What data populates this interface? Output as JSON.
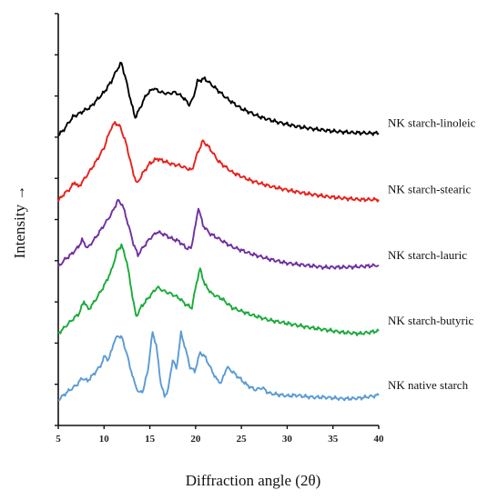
{
  "chart_data": {
    "type": "line",
    "title": "",
    "xlabel": "Diffraction angle (2θ)",
    "ylabel": "Intensity →",
    "xlim": [
      5,
      40
    ],
    "xticks": [
      5,
      10,
      15,
      20,
      25,
      30,
      35,
      40
    ],
    "grid": false,
    "legend": "series labels printed at right end of each trace",
    "series": [
      {
        "name": "NK starch-linoleic",
        "color": "#000000",
        "offset": 4,
        "points": [
          [
            5,
            0.0
          ],
          [
            5.5,
            0.05
          ],
          [
            6,
            0.15
          ],
          [
            6.6,
            0.26
          ],
          [
            7.2,
            0.3
          ],
          [
            7.8,
            0.35
          ],
          [
            8.5,
            0.4
          ],
          [
            9.3,
            0.52
          ],
          [
            10,
            0.62
          ],
          [
            10.8,
            0.78
          ],
          [
            11.4,
            0.95
          ],
          [
            11.9,
            1.05
          ],
          [
            12.4,
            0.8
          ],
          [
            13,
            0.45
          ],
          [
            13.4,
            0.25
          ],
          [
            13.9,
            0.38
          ],
          [
            14.6,
            0.58
          ],
          [
            15.4,
            0.68
          ],
          [
            16.2,
            0.62
          ],
          [
            17,
            0.6
          ],
          [
            17.8,
            0.62
          ],
          [
            18.6,
            0.55
          ],
          [
            19.3,
            0.44
          ],
          [
            19.7,
            0.52
          ],
          [
            20.2,
            0.78
          ],
          [
            21,
            0.82
          ],
          [
            22,
            0.7
          ],
          [
            23.5,
            0.52
          ],
          [
            25,
            0.38
          ],
          [
            27,
            0.26
          ],
          [
            29,
            0.18
          ],
          [
            31,
            0.12
          ],
          [
            33,
            0.08
          ],
          [
            35,
            0.05
          ],
          [
            37,
            0.03
          ],
          [
            39,
            0.02
          ],
          [
            40,
            0.02
          ]
        ]
      },
      {
        "name": "NK starch-stearic",
        "color": "#e8201c",
        "offset": 3,
        "points": [
          [
            5,
            0.0
          ],
          [
            5.6,
            0.1
          ],
          [
            6.3,
            0.18
          ],
          [
            6.8,
            0.28
          ],
          [
            7.2,
            0.2
          ],
          [
            8,
            0.35
          ],
          [
            9,
            0.55
          ],
          [
            10,
            0.78
          ],
          [
            10.7,
            1.05
          ],
          [
            11.2,
            1.15
          ],
          [
            11.8,
            1.08
          ],
          [
            12.5,
            0.8
          ],
          [
            13.1,
            0.45
          ],
          [
            13.6,
            0.25
          ],
          [
            14.2,
            0.4
          ],
          [
            15,
            0.55
          ],
          [
            15.8,
            0.62
          ],
          [
            16.6,
            0.58
          ],
          [
            17.4,
            0.54
          ],
          [
            18.2,
            0.52
          ],
          [
            19,
            0.48
          ],
          [
            19.6,
            0.45
          ],
          [
            20.2,
            0.7
          ],
          [
            20.8,
            0.88
          ],
          [
            21.5,
            0.78
          ],
          [
            22.5,
            0.58
          ],
          [
            24,
            0.42
          ],
          [
            26,
            0.3
          ],
          [
            28,
            0.22
          ],
          [
            30,
            0.16
          ],
          [
            32,
            0.11
          ],
          [
            34,
            0.07
          ],
          [
            36,
            0.04
          ],
          [
            38,
            0.02
          ],
          [
            40,
            0.02
          ]
        ]
      },
      {
        "name": "NK starch-lauric",
        "color": "#7030a0",
        "offset": 2,
        "points": [
          [
            5,
            0.0
          ],
          [
            5.6,
            0.1
          ],
          [
            6.5,
            0.2
          ],
          [
            7.2,
            0.3
          ],
          [
            7.6,
            0.4
          ],
          [
            8.2,
            0.28
          ],
          [
            9,
            0.42
          ],
          [
            10,
            0.62
          ],
          [
            10.8,
            0.78
          ],
          [
            11.5,
            0.98
          ],
          [
            12,
            0.92
          ],
          [
            12.6,
            0.65
          ],
          [
            13.2,
            0.35
          ],
          [
            13.7,
            0.18
          ],
          [
            14.3,
            0.3
          ],
          [
            15,
            0.42
          ],
          [
            15.8,
            0.52
          ],
          [
            16.6,
            0.48
          ],
          [
            17.4,
            0.42
          ],
          [
            18.2,
            0.38
          ],
          [
            19,
            0.28
          ],
          [
            19.5,
            0.28
          ],
          [
            20,
            0.62
          ],
          [
            20.3,
            0.88
          ],
          [
            20.8,
            0.62
          ],
          [
            21.5,
            0.5
          ],
          [
            22.5,
            0.42
          ],
          [
            24,
            0.3
          ],
          [
            26,
            0.2
          ],
          [
            28,
            0.12
          ],
          [
            30,
            0.06
          ],
          [
            32,
            0.03
          ],
          [
            34,
            0.0
          ],
          [
            36,
            0.0
          ],
          [
            38,
            0.01
          ],
          [
            40,
            0.03
          ]
        ]
      },
      {
        "name": "NK starch-butyric",
        "color": "#1aaa3a",
        "offset": 1,
        "points": [
          [
            5,
            0.0
          ],
          [
            5.6,
            0.08
          ],
          [
            6.5,
            0.2
          ],
          [
            7.3,
            0.3
          ],
          [
            7.8,
            0.48
          ],
          [
            8.3,
            0.35
          ],
          [
            9,
            0.48
          ],
          [
            10,
            0.7
          ],
          [
            10.8,
            0.92
          ],
          [
            11.4,
            1.2
          ],
          [
            11.9,
            1.3
          ],
          [
            12.5,
            1.05
          ],
          [
            13.1,
            0.55
          ],
          [
            13.5,
            0.25
          ],
          [
            14.1,
            0.4
          ],
          [
            15,
            0.55
          ],
          [
            15.8,
            0.68
          ],
          [
            16.6,
            0.62
          ],
          [
            17.4,
            0.58
          ],
          [
            18.2,
            0.52
          ],
          [
            19,
            0.42
          ],
          [
            19.6,
            0.38
          ],
          [
            20.1,
            0.75
          ],
          [
            20.5,
            0.95
          ],
          [
            21,
            0.72
          ],
          [
            21.8,
            0.58
          ],
          [
            22.8,
            0.52
          ],
          [
            24,
            0.38
          ],
          [
            26,
            0.28
          ],
          [
            28,
            0.2
          ],
          [
            30,
            0.15
          ],
          [
            32,
            0.1
          ],
          [
            34,
            0.06
          ],
          [
            36,
            0.02
          ],
          [
            38,
            0.0
          ],
          [
            40,
            0.04
          ]
        ]
      },
      {
        "name": "NK native starch",
        "color": "#5b9bd5",
        "offset": 0,
        "points": [
          [
            5,
            0.0
          ],
          [
            6,
            0.12
          ],
          [
            7,
            0.22
          ],
          [
            7.6,
            0.32
          ],
          [
            8.2,
            0.28
          ],
          [
            9,
            0.4
          ],
          [
            9.6,
            0.5
          ],
          [
            10.1,
            0.65
          ],
          [
            10.5,
            0.58
          ],
          [
            11,
            0.82
          ],
          [
            11.5,
            0.95
          ],
          [
            12,
            0.9
          ],
          [
            12.6,
            0.62
          ],
          [
            13.2,
            0.3
          ],
          [
            13.8,
            0.1
          ],
          [
            14.3,
            0.15
          ],
          [
            14.8,
            0.45
          ],
          [
            15.3,
            1.0
          ],
          [
            15.7,
            0.8
          ],
          [
            16.2,
            0.25
          ],
          [
            16.6,
            0.05
          ],
          [
            17,
            0.15
          ],
          [
            17.5,
            0.6
          ],
          [
            17.9,
            0.45
          ],
          [
            18.4,
            0.98
          ],
          [
            18.8,
            0.8
          ],
          [
            19.4,
            0.48
          ],
          [
            19.9,
            0.42
          ],
          [
            20.5,
            0.7
          ],
          [
            21.1,
            0.62
          ],
          [
            21.7,
            0.45
          ],
          [
            22.3,
            0.3
          ],
          [
            22.8,
            0.25
          ],
          [
            23.4,
            0.48
          ],
          [
            24,
            0.42
          ],
          [
            24.8,
            0.32
          ],
          [
            25.6,
            0.22
          ],
          [
            26.5,
            0.15
          ],
          [
            27.3,
            0.18
          ],
          [
            28,
            0.1
          ],
          [
            29,
            0.08
          ],
          [
            30,
            0.06
          ],
          [
            31,
            0.07
          ],
          [
            32,
            0.05
          ],
          [
            33,
            0.04
          ],
          [
            34,
            0.04
          ],
          [
            35,
            0.03
          ],
          [
            36,
            0.02
          ],
          [
            37,
            0.02
          ],
          [
            38,
            0.03
          ],
          [
            39,
            0.05
          ],
          [
            40,
            0.07
          ]
        ]
      }
    ]
  }
}
